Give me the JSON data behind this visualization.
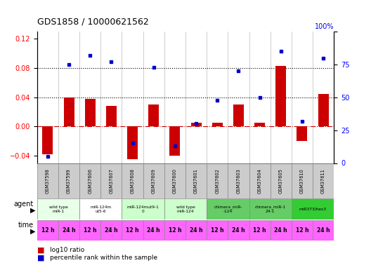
{
  "title": "GDS1858 / 10000621562",
  "samples": [
    "GSM37598",
    "GSM37599",
    "GSM37606",
    "GSM37607",
    "GSM37608",
    "GSM37609",
    "GSM37600",
    "GSM37601",
    "GSM37602",
    "GSM37603",
    "GSM37604",
    "GSM37605",
    "GSM37610",
    "GSM37611"
  ],
  "log10_ratio": [
    -0.038,
    0.04,
    0.038,
    0.028,
    -0.045,
    0.03,
    -0.04,
    0.005,
    0.005,
    0.03,
    0.005,
    0.083,
    -0.02,
    0.045
  ],
  "percentile_rank": [
    5,
    75,
    82,
    77,
    15,
    73,
    13,
    30,
    48,
    70,
    50,
    85,
    32,
    80
  ],
  "ylim_left": [
    -0.05,
    0.13
  ],
  "ylim_right": [
    0,
    100
  ],
  "yticks_left": [
    -0.04,
    0.0,
    0.04,
    0.08,
    0.12
  ],
  "yticks_right": [
    0,
    25,
    50,
    75,
    100
  ],
  "hlines": [
    0.04,
    0.08
  ],
  "bar_color": "#cc0000",
  "dot_color": "#0000cc",
  "zero_line_color": "#cc0000",
  "agent_groups": [
    {
      "label": "wild type\nmiR-1",
      "start": 0,
      "end": 2,
      "color": "#e8ffe8"
    },
    {
      "label": "miR-124m\nut5-6",
      "start": 2,
      "end": 4,
      "color": "#ffffff"
    },
    {
      "label": "miR-124mut9-1\n0",
      "start": 4,
      "end": 6,
      "color": "#ccffcc"
    },
    {
      "label": "wild type\nmiR-124",
      "start": 6,
      "end": 8,
      "color": "#ccffcc"
    },
    {
      "label": "chimera_miR-\n-124",
      "start": 8,
      "end": 10,
      "color": "#66cc66"
    },
    {
      "label": "chimera_miR-1\n24-1",
      "start": 10,
      "end": 12,
      "color": "#66cc66"
    },
    {
      "label": "miR373/hes3",
      "start": 12,
      "end": 14,
      "color": "#33cc33"
    }
  ],
  "time_labels": [
    "12 h",
    "24 h",
    "12 h",
    "24 h",
    "12 h",
    "24 h",
    "12 h",
    "24 h",
    "12 h",
    "24 h",
    "12 h",
    "24 h",
    "12 h",
    "24 h"
  ],
  "time_color": "#ff66ff",
  "gsm_bg_color": "#cccccc",
  "legend_bar_color": "#cc0000",
  "legend_dot_color": "#0000cc",
  "legend_text1": "log10 ratio",
  "legend_text2": "percentile rank within the sample"
}
